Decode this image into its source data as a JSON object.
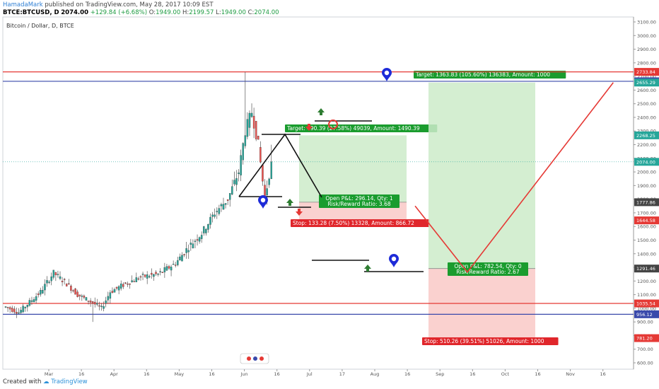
{
  "header": {
    "author": "HamadaMark",
    "published": "published on TradingView.com, May 28, 2017 10:09 EST",
    "symbol": "BTCE:BTCUSD, D",
    "last": "2074.00",
    "change": "+129.84 (+6.68%)",
    "open_label": "O:",
    "open": "1949.00",
    "high_label": "H:",
    "high": "2199.57",
    "low_label": "L:",
    "low": "1949.00",
    "close_label": "C:",
    "close": "2074.00"
  },
  "footer": {
    "created": "Created with",
    "brand": "TradingView"
  },
  "chart_data": {
    "type": "candlestick",
    "title": "Bitcoin / Dollar, D, BTCE",
    "price_axis": {
      "min": 600,
      "max": 3100,
      "ticks": [
        "3100.00",
        "3000.00",
        "2900.00",
        "2800.00",
        "2700.00",
        "2600.00",
        "2500.00",
        "2400.00",
        "2300.00",
        "2200.00",
        "2100.00",
        "2000.00",
        "1900.00",
        "1800.00",
        "1700.00",
        "1600.00",
        "1500.00",
        "1400.00",
        "1300.00",
        "1200.00",
        "1100.00",
        "1000.00",
        "900.00",
        "800.00",
        "700.00",
        "600.00"
      ]
    },
    "time_axis": {
      "labels": [
        "Mar",
        "16",
        "Apr",
        "16",
        "May",
        "16",
        "Jun",
        "16",
        "Jul",
        "17",
        "Aug",
        "16",
        "Sep",
        "16",
        "Oct",
        "16",
        "Nov",
        "16"
      ]
    },
    "price_badges": [
      {
        "value": "2733.84",
        "color": "#e53935"
      },
      {
        "value": "2664.65",
        "color": "#3949ab"
      },
      {
        "value": "2655.29",
        "color": "#26a69a"
      },
      {
        "value": "2268.25",
        "color": "#26a69a"
      },
      {
        "value": "2074.00",
        "color": "#26a69a"
      },
      {
        "value": "1777.86",
        "color": "#444444"
      },
      {
        "value": "1644.58",
        "color": "#e53935"
      },
      {
        "value": "1291.46",
        "color": "#444444"
      },
      {
        "value": "1035.54",
        "color": "#e53935"
      },
      {
        "value": "956.12",
        "color": "#3949ab"
      },
      {
        "value": "781.20",
        "color": "#e53935"
      }
    ],
    "horizontal_lines": [
      {
        "price": 2733.84,
        "color": "#e53935"
      },
      {
        "price": 2664.65,
        "color": "#3949ab"
      },
      {
        "price": 1035.54,
        "color": "#e53935"
      },
      {
        "price": 956.12,
        "color": "#3949ab"
      }
    ],
    "positions": [
      {
        "name": "short-term-long",
        "entry": 1777.86,
        "target": 2268.25,
        "stop": 1644.58,
        "target_label": "Target: 490.39 (27.58%) 49039, Amount: 1490.39",
        "pl_label": "Open P&L: 296.14, Qty: 1",
        "rr_label": "Risk/Reward Ratio: 3.68",
        "stop_label": "Stop: 133.28 (7.50%) 13328, Amount: 866.72"
      },
      {
        "name": "long-term-long",
        "entry": 1291.46,
        "target": 2655.29,
        "stop": 781.2,
        "target_label": "Target: 1363.83 (105.60%) 136383, Amount: 1000",
        "pl_label": "Open P&L: 782.54, Qty: 0",
        "rr_label": "Risk/Reward Ratio: 2.67",
        "stop_label": "Stop: 510.26 (39.51%) 51026, Amount: 1000"
      }
    ],
    "projection_path": [
      {
        "bar": 137,
        "price": 1810
      },
      {
        "bar": 161,
        "price": 2270
      },
      {
        "bar": 188,
        "price": 1750
      },
      {
        "bar": 212,
        "price": 1265
      },
      {
        "bar": 279,
        "price": 2655
      }
    ],
    "colors": {
      "up": "#26a69a",
      "down": "#ef5350",
      "target_fill": "#cdebc9",
      "stop_fill": "#f9c9c7",
      "target_label": "#1a9c2e",
      "stop_label": "#e0262b"
    }
  }
}
